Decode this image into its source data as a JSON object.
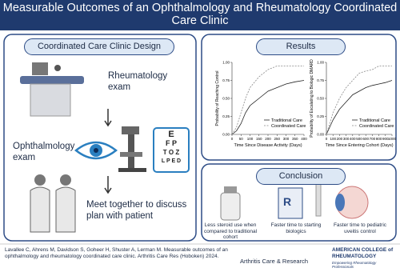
{
  "header": {
    "title": "Measurable Outcomes of an Ophthalmology and Rheumatology Coordinated Care Clinic"
  },
  "design": {
    "heading": "Coordinated Care Clinic Design",
    "steps": [
      "Rheumatology exam",
      "Ophthalmology exam",
      "Meet together to discuss plan with patient"
    ],
    "eye_chart": [
      "E",
      "F P",
      "T O Z",
      "L P E D"
    ]
  },
  "results": {
    "heading": "Results",
    "charts": [
      {
        "type": "line",
        "y_label": "Probability of Reaching Control",
        "x_label": "Time Since Disease Activity (Days)",
        "x": [
          0,
          25,
          50,
          75,
          100,
          150,
          200,
          250,
          300,
          350,
          400
        ],
        "xlim": [
          0,
          400
        ],
        "xticks": [
          0,
          50,
          100,
          150,
          200,
          250,
          300,
          350,
          400
        ],
        "ylim": [
          0,
          1
        ],
        "yticks": [
          {
            "value": 0,
            "label": "0.00"
          },
          {
            "value": 0.25,
            "label": "0.25"
          },
          {
            "value": 0.5,
            "label": "0.50"
          },
          {
            "value": 0.75,
            "label": "0.75"
          },
          {
            "value": 1,
            "label": "1.00"
          }
        ],
        "series": [
          {
            "name": "Traditional Care",
            "color": "#222222",
            "dash": false,
            "values": [
              0,
              0.05,
              0.15,
              0.3,
              0.4,
              0.5,
              0.6,
              0.65,
              0.7,
              0.73,
              0.75
            ]
          },
          {
            "name": "Coordinated Care",
            "color": "#888888",
            "dash": true,
            "values": [
              0,
              0.1,
              0.3,
              0.5,
              0.65,
              0.8,
              0.9,
              0.95,
              0.95,
              0.95,
              0.95
            ]
          }
        ]
      },
      {
        "type": "line",
        "y_label": "Probability of Escalating to Biologic DMARD",
        "x_label": "Time Since Entering Cohort (Days)",
        "x": [
          0,
          100,
          200,
          300,
          400,
          500,
          600,
          700,
          800,
          900,
          1000
        ],
        "xlim": [
          0,
          1000
        ],
        "xticks": [
          0,
          100,
          200,
          300,
          400,
          500,
          600,
          700,
          800,
          900,
          1000
        ],
        "ylim": [
          0,
          1
        ],
        "yticks": [
          {
            "value": 0,
            "label": "0.00"
          },
          {
            "value": 0.25,
            "label": "0.25"
          },
          {
            "value": 0.5,
            "label": "0.50"
          },
          {
            "value": 0.75,
            "label": "0.75"
          },
          {
            "value": 1,
            "label": "1.00"
          }
        ],
        "series": [
          {
            "name": "Traditional Care",
            "color": "#222222",
            "dash": false,
            "values": [
              0,
              0.2,
              0.35,
              0.45,
              0.55,
              0.6,
              0.65,
              0.68,
              0.7,
              0.72,
              0.75
            ]
          },
          {
            "name": "Coordinated Care",
            "color": "#888888",
            "dash": true,
            "values": [
              0,
              0.3,
              0.5,
              0.65,
              0.75,
              0.85,
              0.88,
              0.9,
              0.95,
              0.95,
              0.95
            ]
          }
        ]
      }
    ]
  },
  "conclusion": {
    "heading": "Conclusion",
    "items": [
      "Less steroid use when compared to traditional cohort",
      "Faster time to starting biologics",
      "Faster time to pediatric uveitis control"
    ]
  },
  "footer": {
    "citation": "Lavallee C, Ahrens M, Davidson S, Goheer H, Shuster A, Lerman M. Measurable outcomes of an ophthalmology and rheumatology coordinated care clinic.  Arthritis Care Res (Hoboken) 2024.",
    "journal": "Arthritis Care & Research",
    "society": "AMERICAN COLLEGE of RHEUMATOLOGY",
    "tagline": "Empowering Rheumatology Professionals"
  }
}
